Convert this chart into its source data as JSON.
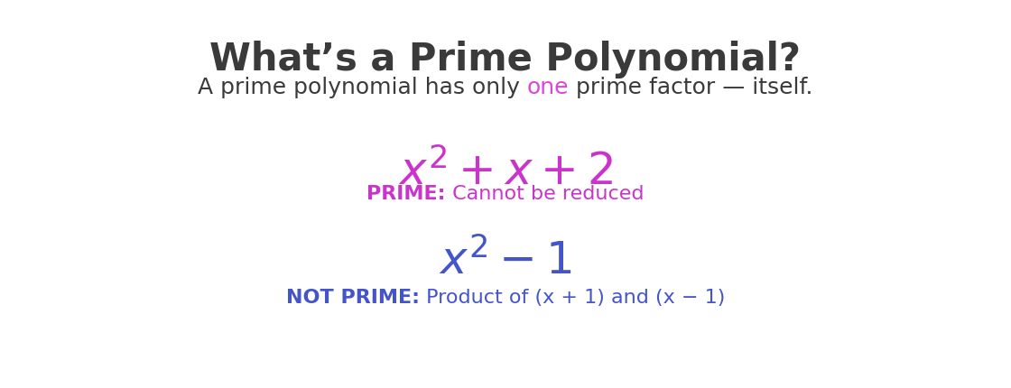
{
  "title": "What’s a Prime Polynomial?",
  "title_color": "#3a3a3a",
  "title_fontsize": 30,
  "subtitle_pre": "A prime polynomial has only ",
  "subtitle_one": "one",
  "subtitle_post": " prime factor — itself.",
  "subtitle_color": "#3a3a3a",
  "one_color": "#dd44dd",
  "subtitle_fontsize": 18,
  "eq1_str": "$x^2 + x + 2$",
  "eq1_color": "#cc33cc",
  "eq2_str": "$x^2 - 1$",
  "eq2_color": "#4455cc",
  "eq_fontsize": 36,
  "prime_label": "PRIME:",
  "prime_desc": " Cannot be reduced",
  "prime_color": "#cc33cc",
  "notprime_label": "NOT PRIME:",
  "notprime_desc": " Product of (x + 1) and (x − 1)",
  "notprime_color": "#4455cc",
  "label_fontsize": 16,
  "bg_color": "#ffffff"
}
